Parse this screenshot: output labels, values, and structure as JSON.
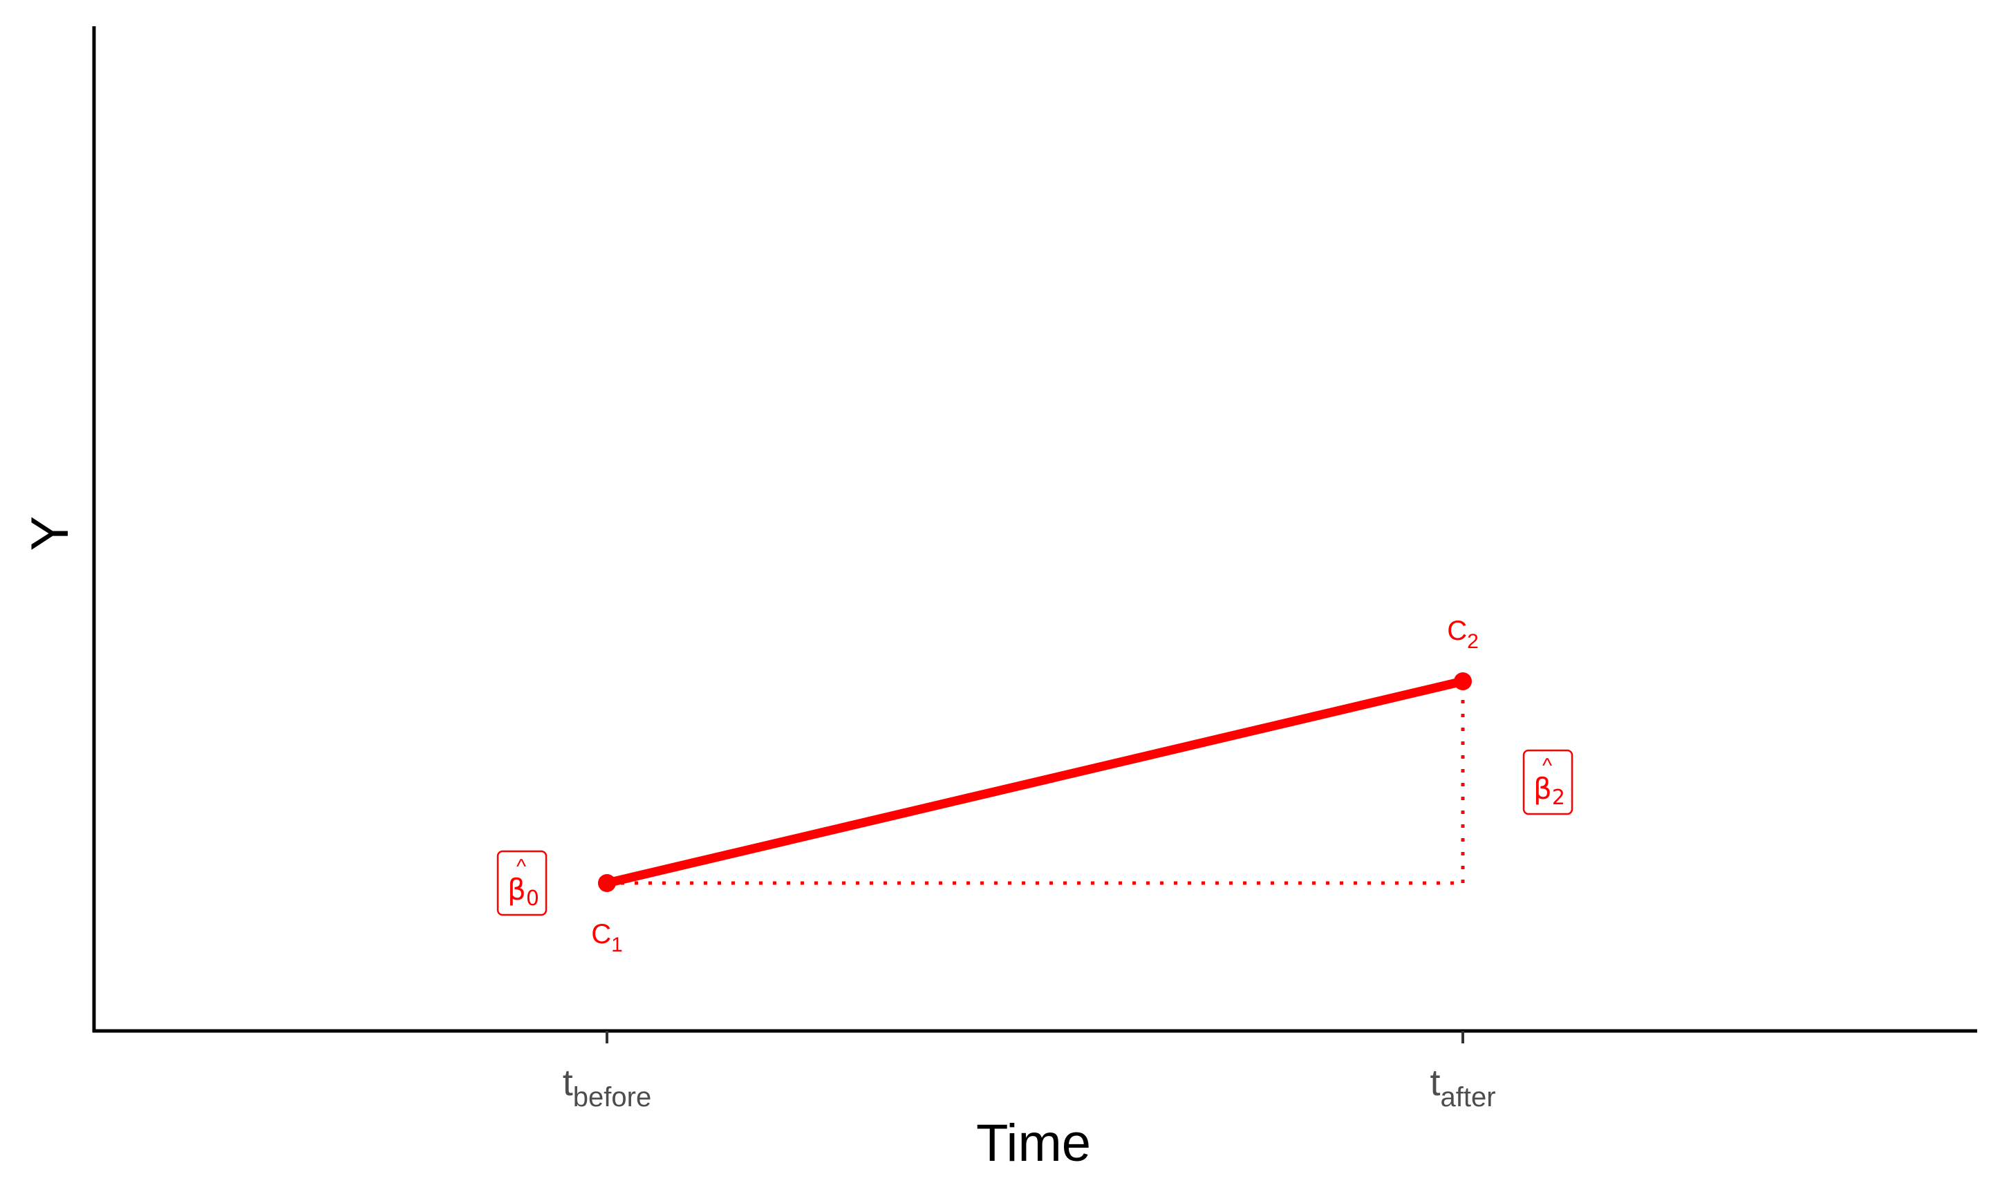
{
  "chart_data": {
    "type": "line",
    "xlabel": "Time",
    "ylabel": "Y",
    "ylim": [
      0,
      10
    ],
    "x_ticks": [
      {
        "base": "t",
        "sub": "before"
      },
      {
        "base": "t",
        "sub": "after"
      }
    ],
    "series": [
      {
        "color": "#ff0000",
        "points": [
          {
            "x": "before",
            "y": 1.1,
            "label": {
              "base": "C",
              "sub": "1"
            },
            "label_side": "below"
          },
          {
            "x": "after",
            "y": 3.3,
            "label": {
              "base": "C",
              "sub": "2"
            },
            "label_side": "above"
          }
        ]
      }
    ],
    "reference_lines": {
      "style": "dotted",
      "color": "#ff0000"
    },
    "annotations": [
      {
        "symbol": "β",
        "hat": "^",
        "sub": "0",
        "anchor_x": "before",
        "anchor_y": 1.1,
        "side": "left"
      },
      {
        "symbol": "β",
        "hat": "^",
        "sub": "2",
        "anchor_x": "after",
        "anchor_y": 2.2,
        "side": "right"
      }
    ]
  }
}
